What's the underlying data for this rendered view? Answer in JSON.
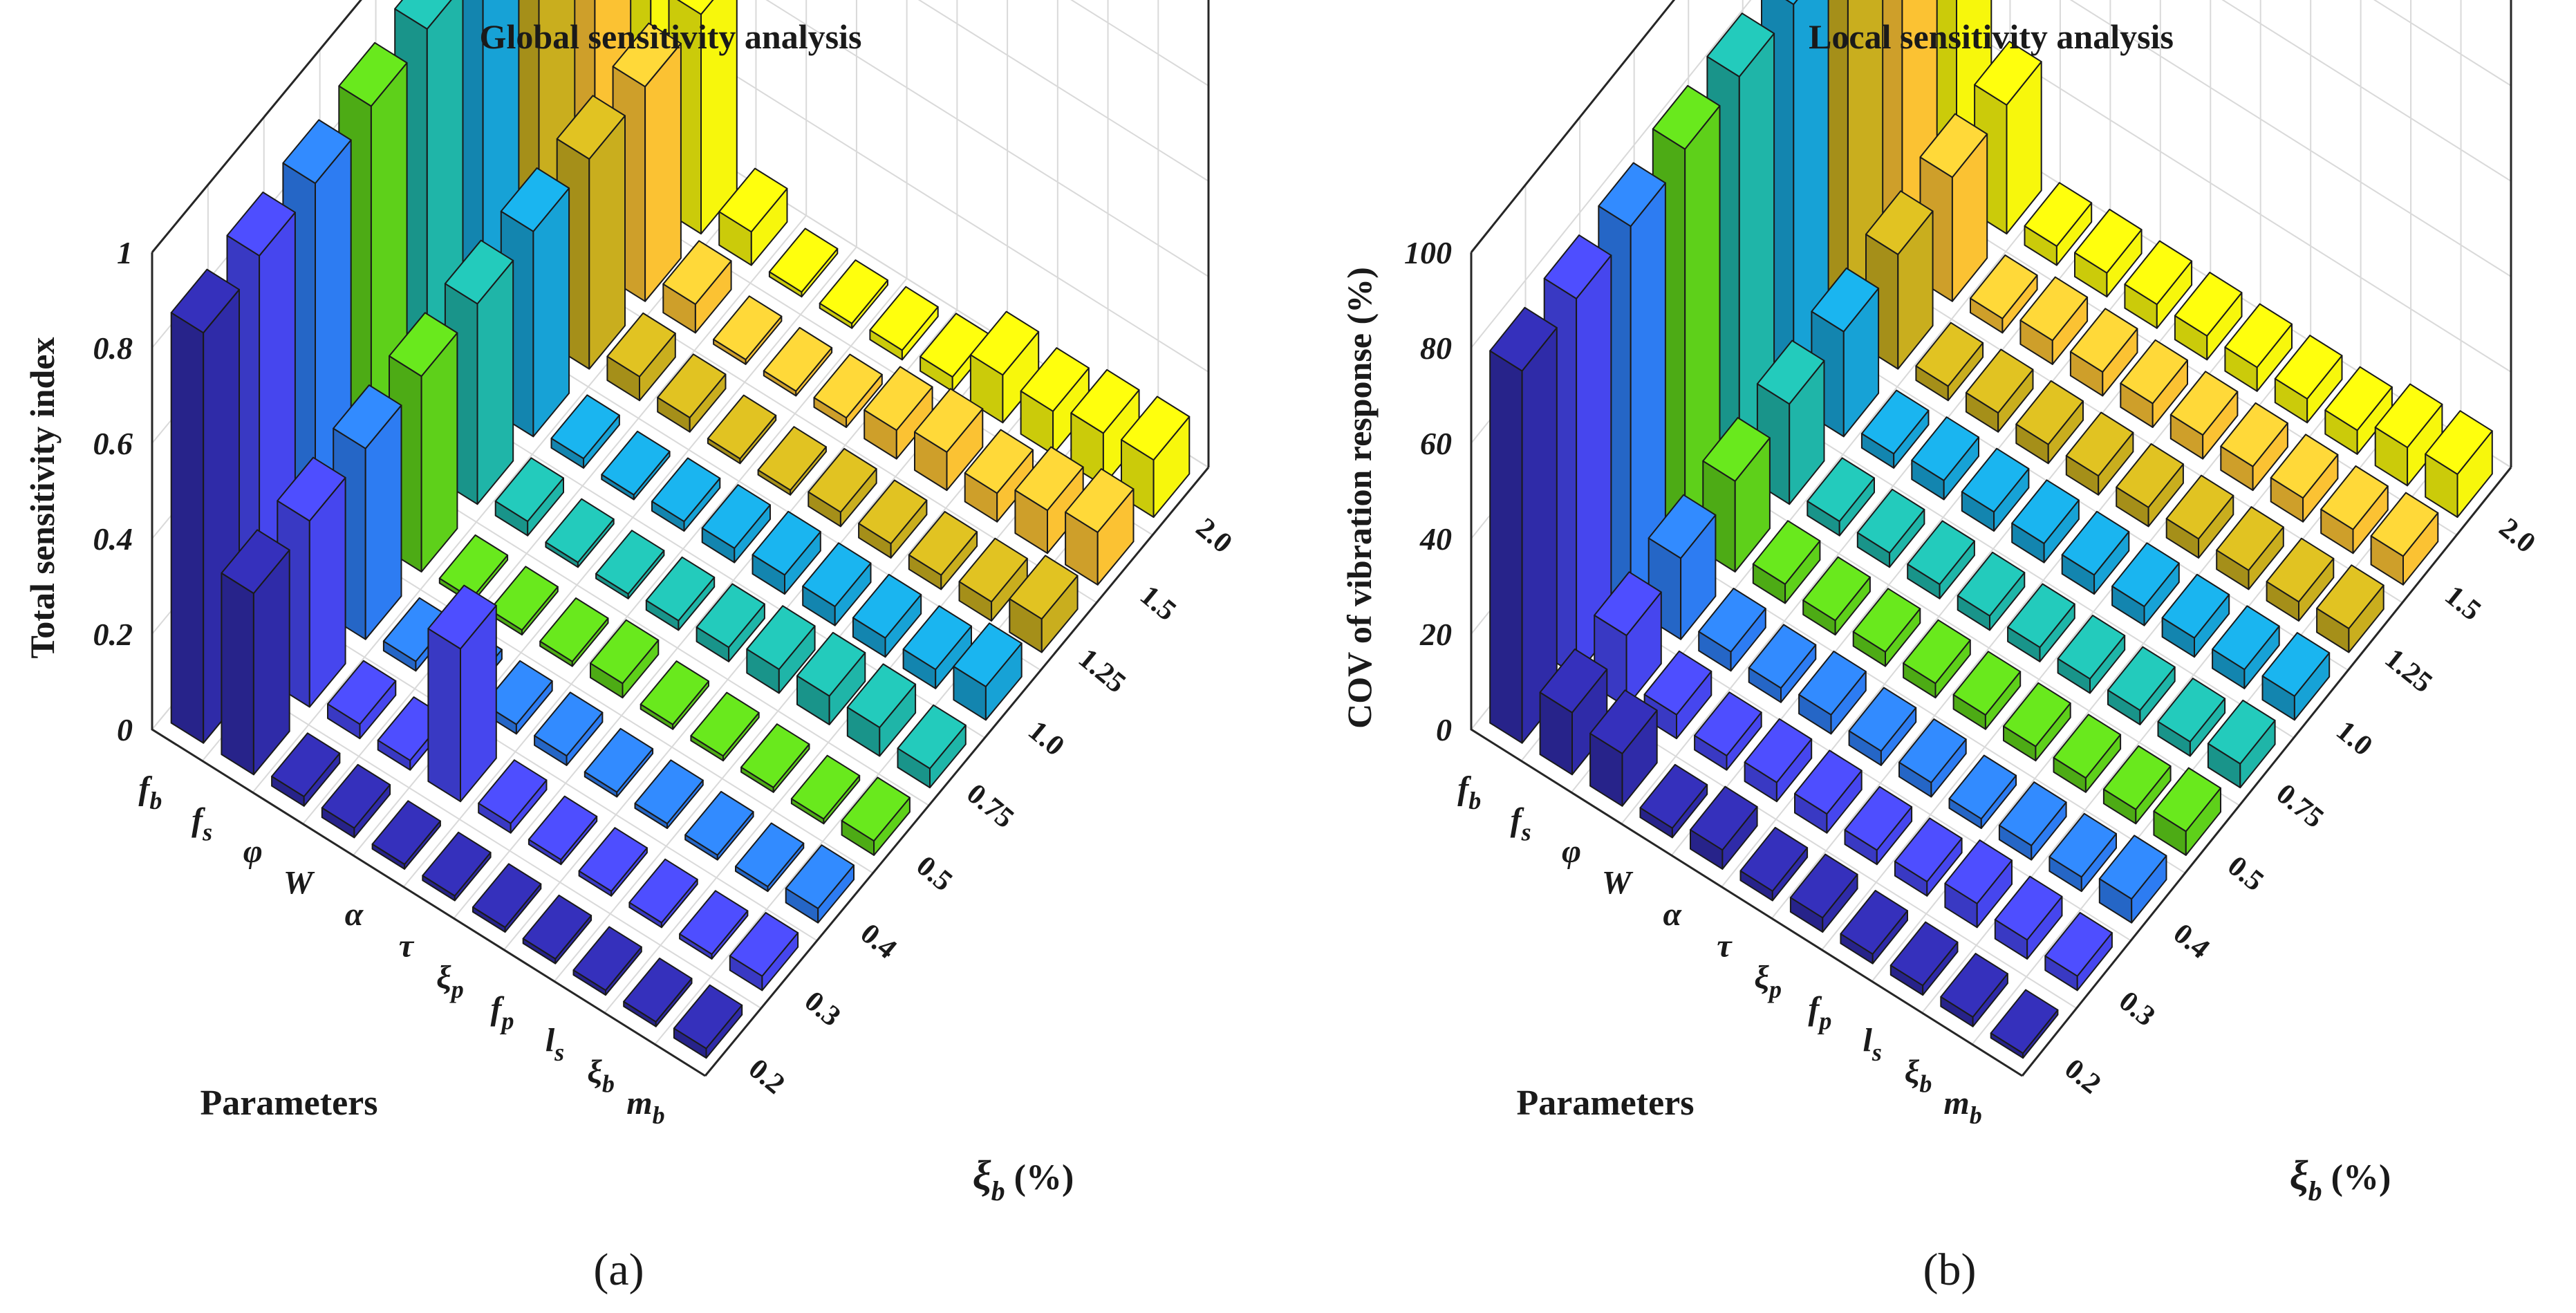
{
  "chart_data": [
    {
      "type": "bar3d",
      "title": "Global sensitivity analysis",
      "zlabel": "Total sensitivity index",
      "zticks": [
        "0",
        "0.2",
        "0.4",
        "0.6",
        "0.8",
        "1"
      ],
      "zlim": [
        0,
        1
      ],
      "parameters": [
        "f",
        "f",
        "φ",
        "W",
        "α",
        "τ",
        "ξ",
        "f",
        "l",
        "ξ",
        "m"
      ],
      "parameter_subscripts": [
        "b",
        "s",
        "",
        "",
        "",
        "",
        "p",
        "p",
        "s",
        "b",
        "b"
      ],
      "parameters_axis_label": "Parameters",
      "xi_b_values": [
        "0.2",
        "0.3",
        "0.4",
        "0.5",
        "0.75",
        "1.0",
        "1.25",
        "1.5",
        "2.0"
      ],
      "xi_axis_label": "ξ",
      "xi_axis_subscript": "b",
      "xi_axis_unit": " (%)",
      "series_colors": [
        "#2f2ba8",
        "#4646ee",
        "#2d7cf2",
        "#5ed01a",
        "#1fb5a8",
        "#17a2d6",
        "#c9ae1e",
        "#fbc233",
        "#f7f70c"
      ],
      "values": [
        [
          0.86,
          0.38,
          0.02,
          0.02,
          0.01,
          0.01,
          0.01,
          0.01,
          0.01,
          0.01,
          0.02
        ],
        [
          0.88,
          0.39,
          0.03,
          0.02,
          0.32,
          0.02,
          0.01,
          0.01,
          0.01,
          0.01,
          0.03
        ],
        [
          0.89,
          0.4,
          0.02,
          0.02,
          0.02,
          0.02,
          0.01,
          0.01,
          0.01,
          0.01,
          0.03
        ],
        [
          0.91,
          0.41,
          0.01,
          0.01,
          0.01,
          0.03,
          0.01,
          0.01,
          0.01,
          0.01,
          0.03
        ],
        [
          0.93,
          0.42,
          0.03,
          0.01,
          0.01,
          0.02,
          0.03,
          0.05,
          0.06,
          0.06,
          0.04
        ],
        [
          0.95,
          0.43,
          0.02,
          0.01,
          0.02,
          0.03,
          0.04,
          0.04,
          0.04,
          0.04,
          0.07
        ],
        [
          0.97,
          0.44,
          0.05,
          0.03,
          0.01,
          0.01,
          0.03,
          0.03,
          0.03,
          0.04,
          0.07
        ],
        [
          0.99,
          0.45,
          0.06,
          0.01,
          0.01,
          0.02,
          0.06,
          0.08,
          0.06,
          0.09,
          0.11
        ],
        [
          1.01,
          0.46,
          0.07,
          0.01,
          0.01,
          0.02,
          0.03,
          0.1,
          0.09,
          0.11,
          0.12
        ]
      ]
    },
    {
      "type": "bar3d",
      "title": "Local sensitivity analysis",
      "zlabel": "COV of vibration response (%)",
      "zticks": [
        "0",
        "20",
        "40",
        "60",
        "80",
        "100"
      ],
      "zlim": [
        0,
        100
      ],
      "parameters": [
        "f",
        "f",
        "φ",
        "W",
        "α",
        "τ",
        "ξ",
        "f",
        "l",
        "ξ",
        "m"
      ],
      "parameter_subscripts": [
        "b",
        "s",
        "",
        "",
        "",
        "",
        "p",
        "p",
        "s",
        "b",
        "b"
      ],
      "parameters_axis_label": "Parameters",
      "xi_b_values": [
        "0.2",
        "0.3",
        "0.4",
        "0.5",
        "0.75",
        "1.0",
        "1.25",
        "1.5",
        "2.0"
      ],
      "xi_axis_label": "ξ",
      "xi_axis_subscript": "b",
      "xi_axis_unit": " (%)",
      "series_colors": [
        "#2f2ba8",
        "#4646ee",
        "#2d7cf2",
        "#5ed01a",
        "#1fb5a8",
        "#17a2d6",
        "#c9ae1e",
        "#fbc233",
        "#f7f70c"
      ],
      "values": [
        [
          78,
          13,
          11,
          2,
          4,
          2,
          3,
          2,
          2,
          2,
          1
        ],
        [
          79,
          15,
          5,
          3,
          4,
          4,
          3,
          3,
          5,
          4,
          3
        ],
        [
          80,
          17,
          4,
          3,
          4,
          3,
          3,
          2,
          3,
          3,
          5
        ],
        [
          82,
          19,
          4,
          3,
          3,
          3,
          3,
          3,
          3,
          3,
          5
        ],
        [
          83,
          21,
          3,
          3,
          3,
          3,
          3,
          3,
          3,
          3,
          5
        ],
        [
          84,
          22,
          3,
          4,
          4,
          4,
          4,
          4,
          4,
          4,
          5
        ],
        [
          86,
          24,
          3,
          4,
          4,
          4,
          4,
          4,
          4,
          4,
          5
        ],
        [
          88,
          26,
          3,
          5,
          5,
          5,
          5,
          5,
          5,
          5,
          6
        ],
        [
          89,
          27,
          4,
          5,
          5,
          5,
          5,
          5,
          5,
          8,
          9
        ]
      ]
    }
  ],
  "subfigure_labels": [
    "(a)",
    "(b)"
  ]
}
